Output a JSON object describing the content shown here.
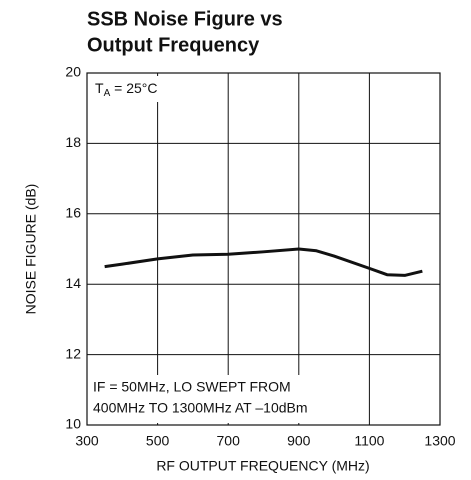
{
  "chart_data": {
    "type": "line",
    "title_lines": [
      "SSB Noise Figure vs",
      "Output Frequency"
    ],
    "xlabel": "RF OUTPUT FREQUENCY (MHz)",
    "ylabel": "NOISE FIGURE (dB)",
    "annotation_temp": {
      "main": "T",
      "subscript": "A",
      "suffix": " = 25°C"
    },
    "annotation_lines": [
      "IF = 50MHz, LO SWEPT FROM",
      "400MHz TO 1300MHz AT –10dBm"
    ],
    "x": [
      350,
      400,
      500,
      600,
      700,
      800,
      900,
      950,
      1000,
      1100,
      1150,
      1200,
      1250
    ],
    "series": [
      {
        "color": "#111111",
        "values": [
          14.5,
          14.57,
          14.72,
          14.83,
          14.85,
          14.92,
          15.0,
          14.95,
          14.8,
          14.45,
          14.27,
          14.25,
          14.37
        ]
      }
    ],
    "xlim": [
      300,
      1300
    ],
    "xticks": [
      300,
      500,
      700,
      900,
      1100,
      1300
    ],
    "ylim": [
      10,
      20
    ],
    "yticks": [
      10,
      12,
      14,
      16,
      18,
      20
    ],
    "grid": true
  }
}
